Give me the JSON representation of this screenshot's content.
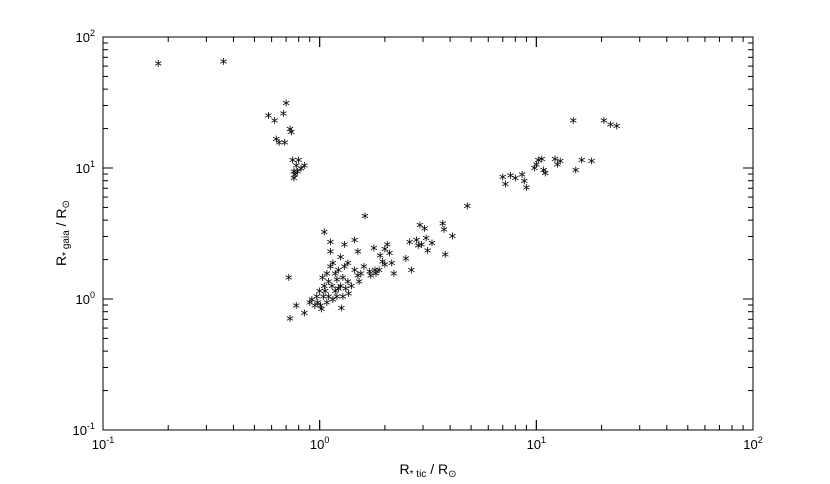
{
  "chart_data": {
    "type": "scatter",
    "x_scale": "log",
    "y_scale": "log",
    "xlim": [
      0.1,
      100
    ],
    "ylim": [
      0.1,
      100
    ],
    "xlabel": {
      "main": "R",
      "sub": "* tic",
      "rest": " / R",
      "symbol": "⊙"
    },
    "ylabel": {
      "main": "R",
      "sub": "* gaia",
      "rest": " / R",
      "symbol": "⊙"
    },
    "marker": "*",
    "x_ticks": [
      {
        "value": 0.1,
        "base": "10",
        "exp": "-1"
      },
      {
        "value": 1,
        "base": "10",
        "exp": "0"
      },
      {
        "value": 10,
        "base": "10",
        "exp": "1"
      },
      {
        "value": 100,
        "base": "10",
        "exp": "2"
      }
    ],
    "y_ticks": [
      {
        "value": 0.1,
        "base": "10",
        "exp": "-1"
      },
      {
        "value": 1,
        "base": "10",
        "exp": "0"
      },
      {
        "value": 10,
        "base": "10",
        "exp": "1"
      },
      {
        "value": 100,
        "base": "10",
        "exp": "2"
      }
    ],
    "points": [
      [
        0.18,
        60
      ],
      [
        0.36,
        62
      ],
      [
        0.58,
        24
      ],
      [
        0.62,
        22
      ],
      [
        0.63,
        16
      ],
      [
        0.65,
        15
      ],
      [
        0.68,
        25
      ],
      [
        0.7,
        30
      ],
      [
        0.69,
        15
      ],
      [
        0.73,
        19
      ],
      [
        0.74,
        18
      ],
      [
        0.75,
        11
      ],
      [
        0.76,
        9
      ],
      [
        0.76,
        8
      ],
      [
        0.77,
        8.5
      ],
      [
        0.78,
        10
      ],
      [
        0.79,
        9
      ],
      [
        0.8,
        11
      ],
      [
        0.82,
        9.5
      ],
      [
        0.85,
        10
      ],
      [
        0.72,
        1.4
      ],
      [
        0.73,
        0.68
      ],
      [
        0.78,
        0.85
      ],
      [
        0.85,
        0.75
      ],
      [
        0.9,
        0.9
      ],
      [
        0.92,
        0.95
      ],
      [
        0.95,
        0.85
      ],
      [
        0.97,
        1.0
      ],
      [
        0.98,
        0.9
      ],
      [
        1.0,
        1.1
      ],
      [
        1.01,
        0.85
      ],
      [
        1.02,
        0.8
      ],
      [
        1.03,
        1.4
      ],
      [
        1.04,
        1.0
      ],
      [
        1.05,
        3.1
      ],
      [
        1.05,
        1.2
      ],
      [
        1.06,
        1.1
      ],
      [
        1.08,
        1.5
      ],
      [
        1.08,
        0.9
      ],
      [
        1.1,
        1.3
      ],
      [
        1.1,
        1.0
      ],
      [
        1.12,
        2.6
      ],
      [
        1.12,
        2.2
      ],
      [
        1.12,
        1.7
      ],
      [
        1.14,
        1.2
      ],
      [
        1.15,
        1.8
      ],
      [
        1.15,
        0.95
      ],
      [
        1.18,
        1.5
      ],
      [
        1.18,
        1.1
      ],
      [
        1.2,
        1.35
      ],
      [
        1.2,
        1.0
      ],
      [
        1.22,
        1.6
      ],
      [
        1.22,
        1.15
      ],
      [
        1.25,
        2.0
      ],
      [
        1.25,
        1.2
      ],
      [
        1.26,
        0.82
      ],
      [
        1.28,
        1.4
      ],
      [
        1.28,
        1.0
      ],
      [
        1.3,
        2.5
      ],
      [
        1.3,
        1.7
      ],
      [
        1.32,
        1.15
      ],
      [
        1.35,
        1.3
      ],
      [
        1.35,
        1.8
      ],
      [
        1.36,
        1.05
      ],
      [
        1.4,
        1.2
      ],
      [
        1.45,
        2.7
      ],
      [
        1.45,
        1.6
      ],
      [
        1.5,
        2.2
      ],
      [
        1.5,
        1.45
      ],
      [
        1.52,
        1.3
      ],
      [
        1.55,
        1.5
      ],
      [
        1.6,
        1.7
      ],
      [
        1.62,
        4.1
      ],
      [
        1.7,
        1.55
      ],
      [
        1.72,
        1.45
      ],
      [
        1.78,
        2.35
      ],
      [
        1.8,
        1.6
      ],
      [
        1.82,
        1.5
      ],
      [
        1.88,
        1.6
      ],
      [
        1.9,
        2.05
      ],
      [
        1.95,
        1.85
      ],
      [
        2.0,
        2.3
      ],
      [
        2.0,
        1.75
      ],
      [
        2.05,
        2.5
      ],
      [
        2.1,
        2.15
      ],
      [
        2.15,
        1.8
      ],
      [
        2.2,
        1.5
      ],
      [
        2.5,
        1.95
      ],
      [
        2.6,
        2.6
      ],
      [
        2.65,
        1.6
      ],
      [
        2.8,
        2.7
      ],
      [
        2.85,
        2.45
      ],
      [
        2.9,
        3.5
      ],
      [
        2.95,
        2.5
      ],
      [
        3.05,
        3.3
      ],
      [
        3.1,
        2.8
      ],
      [
        3.15,
        2.25
      ],
      [
        3.3,
        2.55
      ],
      [
        3.7,
        3.6
      ],
      [
        3.75,
        3.25
      ],
      [
        3.8,
        2.1
      ],
      [
        4.1,
        2.9
      ],
      [
        4.8,
        4.9
      ],
      [
        7.0,
        8.2
      ],
      [
        7.2,
        7.2
      ],
      [
        7.6,
        8.4
      ],
      [
        8.0,
        8.0
      ],
      [
        8.6,
        8.5
      ],
      [
        8.8,
        7.6
      ],
      [
        9.0,
        6.8
      ],
      [
        9.8,
        9.6
      ],
      [
        10.0,
        10.2
      ],
      [
        10.2,
        11.0
      ],
      [
        10.6,
        11.2
      ],
      [
        10.8,
        9.2
      ],
      [
        11.0,
        8.8
      ],
      [
        12.2,
        11.2
      ],
      [
        12.5,
        10.2
      ],
      [
        12.9,
        10.8
      ],
      [
        14.8,
        22.0
      ],
      [
        15.2,
        9.2
      ],
      [
        16.2,
        11.0
      ],
      [
        18.0,
        10.8
      ],
      [
        20.5,
        22.0
      ],
      [
        22.0,
        20.5
      ],
      [
        23.5,
        20.0
      ]
    ]
  }
}
